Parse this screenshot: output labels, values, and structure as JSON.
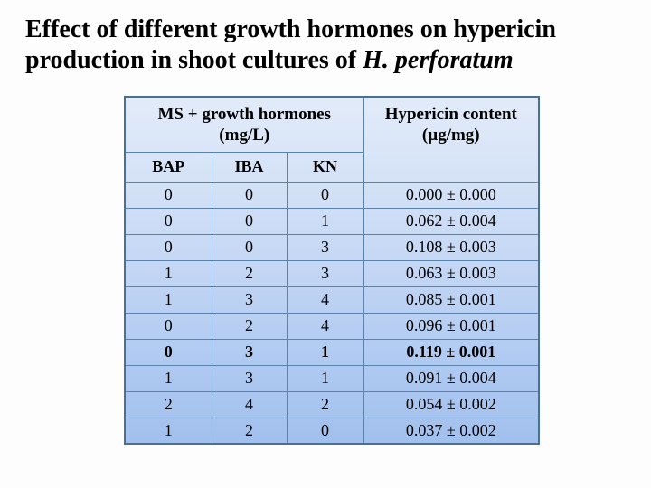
{
  "title": {
    "line1": "Effect of different growth hormones on hypericin",
    "line2_normal": "production in shoot cultures of ",
    "line2_italic": "H. perforatum"
  },
  "table": {
    "header": {
      "group_line1": "MS + growth hormones",
      "group_line2": "(mg/L)",
      "result_line1": "Hypericin content",
      "result_line2": "(µg/mg)",
      "sub_columns": [
        "BAP",
        "IBA",
        "KN"
      ]
    },
    "rows": [
      {
        "bap": "0",
        "iba": "0",
        "kn": "0",
        "hypericin": "0.000 ± 0.000",
        "bold": false
      },
      {
        "bap": "0",
        "iba": "0",
        "kn": "1",
        "hypericin": "0.062 ± 0.004",
        "bold": false
      },
      {
        "bap": "0",
        "iba": "0",
        "kn": "3",
        "hypericin": "0.108 ± 0.003",
        "bold": false
      },
      {
        "bap": "1",
        "iba": "2",
        "kn": "3",
        "hypericin": "0.063 ± 0.003",
        "bold": false
      },
      {
        "bap": "1",
        "iba": "3",
        "kn": "4",
        "hypericin": "0.085 ± 0.001",
        "bold": false
      },
      {
        "bap": "0",
        "iba": "2",
        "kn": "4",
        "hypericin": "0.096 ± 0.001",
        "bold": false
      },
      {
        "bap": "0",
        "iba": "3",
        "kn": "1",
        "hypericin": "0.119 ± 0.001",
        "bold": true
      },
      {
        "bap": "1",
        "iba": "3",
        "kn": "1",
        "hypericin": "0.091 ± 0.004",
        "bold": false
      },
      {
        "bap": "2",
        "iba": "4",
        "kn": "2",
        "hypericin": "0.054 ± 0.002",
        "bold": false
      },
      {
        "bap": "1",
        "iba": "2",
        "kn": "0",
        "hypericin": "0.037 ± 0.002",
        "bold": false
      }
    ]
  },
  "colors": {
    "background": "#fdfdfd",
    "text": "#000000",
    "table_gradient_top": "#e2ebf9",
    "table_gradient_bottom": "#a2c0ee",
    "cell_border": "#5b82ad",
    "outer_border": "#4a7195"
  }
}
